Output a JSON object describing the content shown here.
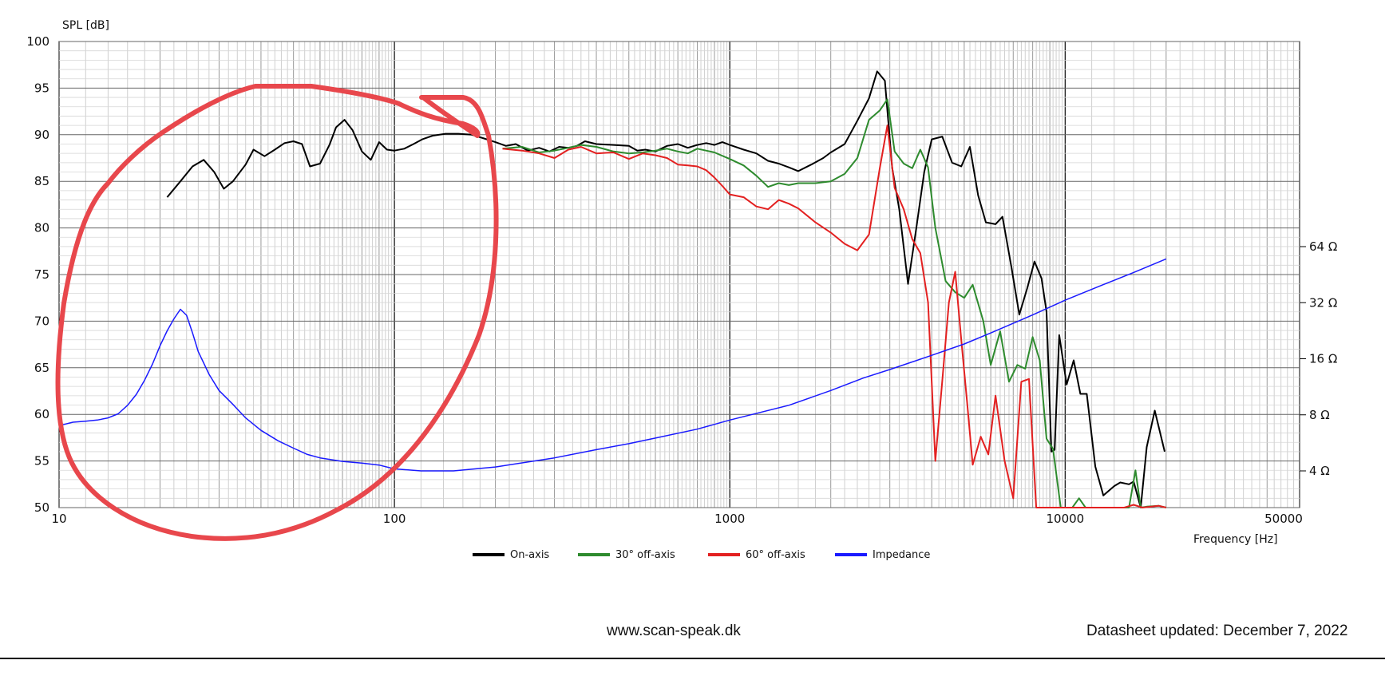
{
  "chart_data": {
    "type": "line",
    "y_label": "SPL [dB]",
    "x_label": "Frequency [Hz]",
    "x_scale": "log",
    "xlim": [
      10,
      50000
    ],
    "ylim": [
      50,
      100
    ],
    "x_ticks": [
      "10",
      "100",
      "1000",
      "10000",
      "50000"
    ],
    "y_ticks": [
      "100",
      "95",
      "90",
      "85",
      "80",
      "75",
      "70",
      "65",
      "60",
      "55",
      "50"
    ],
    "impedance_axis": {
      "scale": "log2",
      "ticks": [
        "64 Ω",
        "32 Ω",
        "16 Ω",
        "8 Ω",
        "4 Ω"
      ],
      "tick_values": [
        64,
        32,
        16,
        8,
        4
      ]
    },
    "grid": true,
    "legend_position": "bottom",
    "series": [
      {
        "name": "On-axis",
        "color": "#000000",
        "axis": "spl",
        "points": [
          [
            21,
            83.3
          ],
          [
            23,
            85
          ],
          [
            25,
            86.6
          ],
          [
            27,
            87.3
          ],
          [
            29,
            86
          ],
          [
            31,
            84.2
          ],
          [
            33,
            85
          ],
          [
            36,
            86.8
          ],
          [
            38,
            88.4
          ],
          [
            41,
            87.7
          ],
          [
            44,
            88.4
          ],
          [
            47,
            89.1
          ],
          [
            50,
            89.3
          ],
          [
            53,
            89
          ],
          [
            56,
            86.6
          ],
          [
            60,
            86.9
          ],
          [
            64,
            88.9
          ],
          [
            67,
            90.8
          ],
          [
            71,
            91.6
          ],
          [
            75,
            90.5
          ],
          [
            80,
            88.2
          ],
          [
            85,
            87.3
          ],
          [
            90,
            89.2
          ],
          [
            95,
            88.4
          ],
          [
            100,
            88.3
          ],
          [
            107,
            88.5
          ],
          [
            114,
            89
          ],
          [
            121,
            89.5
          ],
          [
            130,
            89.9
          ],
          [
            142,
            90.1
          ],
          [
            155,
            90.1
          ],
          [
            170,
            90
          ],
          [
            185,
            89.6
          ],
          [
            200,
            89.2
          ],
          [
            215,
            88.8
          ],
          [
            230,
            89
          ],
          [
            250,
            88.3
          ],
          [
            270,
            88.6
          ],
          [
            290,
            88.2
          ],
          [
            310,
            88.7
          ],
          [
            330,
            88.6
          ],
          [
            350,
            88.8
          ],
          [
            370,
            89.3
          ],
          [
            400,
            89
          ],
          [
            450,
            88.9
          ],
          [
            500,
            88.8
          ],
          [
            530,
            88.3
          ],
          [
            560,
            88.4
          ],
          [
            600,
            88.2
          ],
          [
            650,
            88.8
          ],
          [
            700,
            89
          ],
          [
            750,
            88.6
          ],
          [
            800,
            88.9
          ],
          [
            850,
            89.1
          ],
          [
            900,
            88.9
          ],
          [
            950,
            89.2
          ],
          [
            1000,
            88.9
          ],
          [
            1100,
            88.4
          ],
          [
            1200,
            88
          ],
          [
            1300,
            87.2
          ],
          [
            1400,
            86.9
          ],
          [
            1500,
            86.5
          ],
          [
            1600,
            86.1
          ],
          [
            1750,
            86.8
          ],
          [
            1900,
            87.5
          ],
          [
            2000,
            88.1
          ],
          [
            2200,
            89
          ],
          [
            2400,
            91.5
          ],
          [
            2600,
            93.9
          ],
          [
            2750,
            96.8
          ],
          [
            2900,
            95.8
          ],
          [
            3050,
            86.4
          ],
          [
            3200,
            82
          ],
          [
            3400,
            74
          ],
          [
            3600,
            80
          ],
          [
            3800,
            86
          ],
          [
            4000,
            89.5
          ],
          [
            4300,
            89.8
          ],
          [
            4600,
            87
          ],
          [
            4900,
            86.6
          ],
          [
            5200,
            88.7
          ],
          [
            5500,
            83.5
          ],
          [
            5800,
            80.6
          ],
          [
            6200,
            80.4
          ],
          [
            6500,
            81.2
          ],
          [
            6900,
            76
          ],
          [
            7300,
            70.7
          ],
          [
            7700,
            73.5
          ],
          [
            8100,
            76.4
          ],
          [
            8500,
            74.6
          ],
          [
            8800,
            71
          ],
          [
            9100,
            56
          ],
          [
            9300,
            56.2
          ],
          [
            9600,
            68.5
          ],
          [
            10100,
            63.2
          ],
          [
            10600,
            65.8
          ],
          [
            11100,
            62.2
          ],
          [
            11600,
            62.2
          ],
          [
            12300,
            54.4
          ],
          [
            13000,
            51.3
          ],
          [
            14000,
            52.3
          ],
          [
            14600,
            52.7
          ],
          [
            15500,
            52.5
          ],
          [
            16000,
            52.8
          ],
          [
            16800,
            50
          ],
          [
            17500,
            56.5
          ],
          [
            18500,
            60.4
          ],
          [
            19800,
            56
          ]
        ]
      },
      {
        "name": "30° off-axis",
        "color": "#2e8b2e",
        "axis": "spl",
        "points": [
          [
            210,
            88.5
          ],
          [
            240,
            88.7
          ],
          [
            270,
            88.1
          ],
          [
            300,
            88.3
          ],
          [
            330,
            88.6
          ],
          [
            360,
            88.9
          ],
          [
            400,
            88.7
          ],
          [
            450,
            88.2
          ],
          [
            500,
            88
          ],
          [
            550,
            88.1
          ],
          [
            600,
            88.3
          ],
          [
            650,
            88.5
          ],
          [
            700,
            88.2
          ],
          [
            750,
            88
          ],
          [
            800,
            88.5
          ],
          [
            900,
            88.1
          ],
          [
            1000,
            87.4
          ],
          [
            1100,
            86.7
          ],
          [
            1200,
            85.6
          ],
          [
            1300,
            84.4
          ],
          [
            1400,
            84.8
          ],
          [
            1500,
            84.6
          ],
          [
            1600,
            84.8
          ],
          [
            1800,
            84.8
          ],
          [
            2000,
            85
          ],
          [
            2200,
            85.8
          ],
          [
            2400,
            87.5
          ],
          [
            2600,
            91.6
          ],
          [
            2800,
            92.6
          ],
          [
            2950,
            93.8
          ],
          [
            3100,
            88.2
          ],
          [
            3300,
            86.9
          ],
          [
            3500,
            86.4
          ],
          [
            3700,
            88.4
          ],
          [
            3900,
            86.5
          ],
          [
            4100,
            80
          ],
          [
            4400,
            74.3
          ],
          [
            4700,
            73.1
          ],
          [
            5000,
            72.5
          ],
          [
            5300,
            73.9
          ],
          [
            5700,
            70
          ],
          [
            6000,
            65.3
          ],
          [
            6400,
            68.9
          ],
          [
            6800,
            63.5
          ],
          [
            7200,
            65.3
          ],
          [
            7600,
            64.9
          ],
          [
            8000,
            68.3
          ],
          [
            8400,
            65.8
          ],
          [
            8800,
            57.4
          ],
          [
            9200,
            56.3
          ],
          [
            9700,
            50
          ],
          [
            10500,
            50
          ],
          [
            11000,
            51
          ],
          [
            11500,
            50
          ],
          [
            12500,
            50
          ],
          [
            14500,
            50
          ],
          [
            15500,
            50
          ],
          [
            16200,
            54
          ],
          [
            16800,
            50
          ],
          [
            17500,
            50.1
          ],
          [
            19000,
            50.2
          ],
          [
            20000,
            50
          ]
        ]
      },
      {
        "name": "60° off-axis",
        "color": "#e32020",
        "axis": "spl",
        "points": [
          [
            210,
            88.5
          ],
          [
            240,
            88.3
          ],
          [
            270,
            88
          ],
          [
            300,
            87.5
          ],
          [
            330,
            88.4
          ],
          [
            360,
            88.7
          ],
          [
            400,
            88
          ],
          [
            450,
            88.1
          ],
          [
            500,
            87.4
          ],
          [
            550,
            88
          ],
          [
            600,
            87.8
          ],
          [
            650,
            87.5
          ],
          [
            700,
            86.8
          ],
          [
            750,
            86.7
          ],
          [
            800,
            86.6
          ],
          [
            850,
            86.2
          ],
          [
            900,
            85.4
          ],
          [
            950,
            84.5
          ],
          [
            1000,
            83.6
          ],
          [
            1100,
            83.3
          ],
          [
            1200,
            82.3
          ],
          [
            1300,
            82
          ],
          [
            1400,
            83
          ],
          [
            1500,
            82.6
          ],
          [
            1600,
            82.1
          ],
          [
            1800,
            80.6
          ],
          [
            2000,
            79.5
          ],
          [
            2200,
            78.3
          ],
          [
            2400,
            77.6
          ],
          [
            2600,
            79.3
          ],
          [
            2800,
            86.4
          ],
          [
            2950,
            91
          ],
          [
            3100,
            84.3
          ],
          [
            3300,
            82
          ],
          [
            3500,
            78.8
          ],
          [
            3700,
            77.3
          ],
          [
            3900,
            72
          ],
          [
            4100,
            55
          ],
          [
            4300,
            63.6
          ],
          [
            4500,
            72
          ],
          [
            4700,
            75.3
          ],
          [
            4900,
            68
          ],
          [
            5100,
            61.3
          ],
          [
            5300,
            54.6
          ],
          [
            5600,
            57.6
          ],
          [
            5900,
            55.7
          ],
          [
            6200,
            62
          ],
          [
            6600,
            55
          ],
          [
            7000,
            51
          ],
          [
            7400,
            63.5
          ],
          [
            7800,
            63.8
          ],
          [
            8200,
            50
          ],
          [
            8700,
            50
          ],
          [
            9500,
            50
          ],
          [
            12000,
            50
          ],
          [
            15000,
            50
          ],
          [
            16000,
            50.3
          ],
          [
            17000,
            50
          ],
          [
            19000,
            50.2
          ],
          [
            20000,
            50
          ]
        ]
      },
      {
        "name": "Impedance",
        "color": "#1a1aff",
        "axis": "impedance",
        "points": [
          [
            10,
            7
          ],
          [
            11,
            7.3
          ],
          [
            12,
            7.4
          ],
          [
            13,
            7.5
          ],
          [
            14,
            7.7
          ],
          [
            15,
            8.1
          ],
          [
            16,
            9
          ],
          [
            17,
            10.3
          ],
          [
            18,
            12.3
          ],
          [
            19,
            15
          ],
          [
            20,
            18.8
          ],
          [
            21,
            22.6
          ],
          [
            22,
            26.2
          ],
          [
            23,
            29.5
          ],
          [
            24,
            27.4
          ],
          [
            25,
            22
          ],
          [
            26,
            17.5
          ],
          [
            28,
            13.2
          ],
          [
            30,
            10.8
          ],
          [
            33,
            9.1
          ],
          [
            36,
            7.7
          ],
          [
            40,
            6.6
          ],
          [
            45,
            5.8
          ],
          [
            50,
            5.3
          ],
          [
            55,
            4.9
          ],
          [
            60,
            4.7
          ],
          [
            70,
            4.5
          ],
          [
            80,
            4.4
          ],
          [
            90,
            4.3
          ],
          [
            100,
            4.1
          ],
          [
            120,
            4
          ],
          [
            150,
            4
          ],
          [
            200,
            4.2
          ],
          [
            300,
            4.7
          ],
          [
            400,
            5.2
          ],
          [
            500,
            5.6
          ],
          [
            600,
            6
          ],
          [
            800,
            6.7
          ],
          [
            1000,
            7.5
          ],
          [
            1500,
            9
          ],
          [
            2000,
            10.8
          ],
          [
            2500,
            12.6
          ],
          [
            3000,
            14
          ],
          [
            4000,
            16.7
          ],
          [
            5000,
            19.2
          ],
          [
            6000,
            22
          ],
          [
            8000,
            27.5
          ],
          [
            10000,
            33
          ],
          [
            13000,
            40
          ],
          [
            16000,
            46.5
          ],
          [
            20000,
            55
          ]
        ]
      }
    ]
  },
  "footer": {
    "url": "www.scan-speak.dk",
    "updated": "Datasheet updated: December 7, 2022"
  }
}
